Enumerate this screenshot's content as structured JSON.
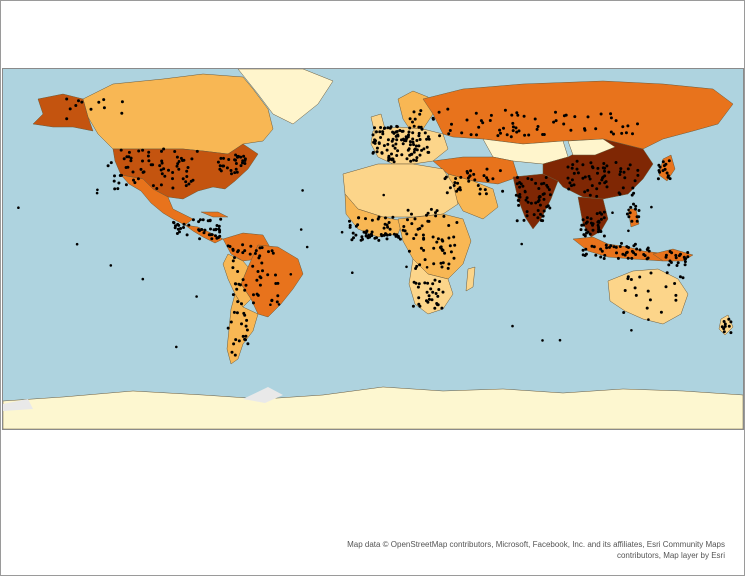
{
  "map": {
    "colors": {
      "ocean": "#aed3df",
      "class_1": "#fff5cc",
      "class_2": "#fcd58a",
      "class_3": "#f8b754",
      "class_4": "#e8731c",
      "class_5": "#c4540f",
      "class_6": "#7f2704",
      "antarctica": "#fdf7d0",
      "ice": "#e9e9e9",
      "border": "#6b5a3a",
      "point": "#000000"
    },
    "attribution_line1": "Map data © OpenStreetMap contributors, Microsoft, Facebook, Inc. and its affiliates, Esri Community Maps",
    "attribution_line2": "contributors, Map layer by Esri"
  }
}
